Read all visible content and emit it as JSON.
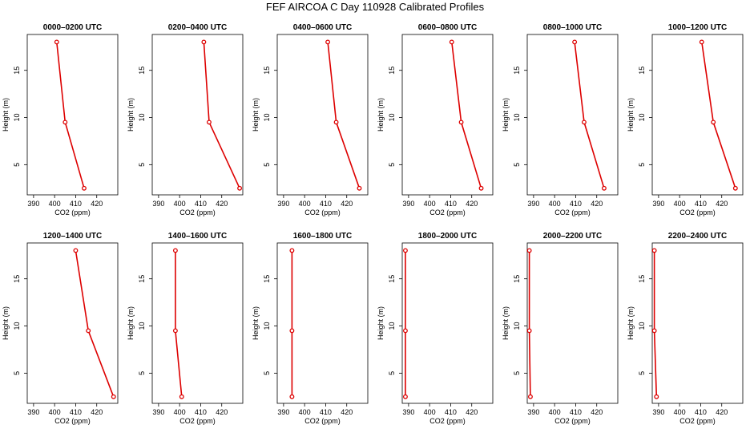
{
  "figure": {
    "title": "FEF AIRCOA C  Day 110928  Calibrated Profiles",
    "series_color": "#dd0000"
  },
  "chart_data": [
    {
      "type": "line",
      "title": "0000–0200 UTC",
      "xlabel": "CO2 (ppm)",
      "ylabel": "Height (m)",
      "xlim": [
        387,
        430
      ],
      "ylim": [
        1.8,
        18.8
      ],
      "xticks": [
        390,
        400,
        410,
        420
      ],
      "yticks": [
        5,
        10,
        15
      ],
      "series": [
        {
          "x": [
            401.0,
            405.0,
            414.0
          ],
          "y": [
            18.0,
            9.5,
            2.5
          ]
        }
      ]
    },
    {
      "type": "line",
      "title": "0200–0400 UTC",
      "xlabel": "CO2 (ppm)",
      "ylabel": "Height (m)",
      "xlim": [
        387,
        430
      ],
      "ylim": [
        1.8,
        18.8
      ],
      "xticks": [
        390,
        400,
        410,
        420
      ],
      "yticks": [
        5,
        10,
        15
      ],
      "series": [
        {
          "x": [
            411.5,
            414.0,
            428.5
          ],
          "y": [
            18.0,
            9.5,
            2.5
          ]
        }
      ]
    },
    {
      "type": "line",
      "title": "0400–0600 UTC",
      "xlabel": "CO2 (ppm)",
      "ylabel": "Height (m)",
      "xlim": [
        387,
        430
      ],
      "ylim": [
        1.8,
        18.8
      ],
      "xticks": [
        390,
        400,
        410,
        420
      ],
      "yticks": [
        5,
        10,
        15
      ],
      "series": [
        {
          "x": [
            411.0,
            415.0,
            426.0
          ],
          "y": [
            18.0,
            9.5,
            2.5
          ]
        }
      ]
    },
    {
      "type": "line",
      "title": "0600–0800 UTC",
      "xlabel": "CO2 (ppm)",
      "ylabel": "Height (m)",
      "xlim": [
        387,
        430
      ],
      "ylim": [
        1.8,
        18.8
      ],
      "xticks": [
        390,
        400,
        410,
        420
      ],
      "yticks": [
        5,
        10,
        15
      ],
      "series": [
        {
          "x": [
            410.5,
            415.0,
            424.5
          ],
          "y": [
            18.0,
            9.5,
            2.5
          ]
        }
      ]
    },
    {
      "type": "line",
      "title": "0800–1000 UTC",
      "xlabel": "CO2 (ppm)",
      "ylabel": "Height (m)",
      "xlim": [
        387,
        430
      ],
      "ylim": [
        1.8,
        18.8
      ],
      "xticks": [
        390,
        400,
        410,
        420
      ],
      "yticks": [
        5,
        10,
        15
      ],
      "series": [
        {
          "x": [
            409.5,
            414.0,
            423.5
          ],
          "y": [
            18.0,
            9.5,
            2.5
          ]
        }
      ]
    },
    {
      "type": "line",
      "title": "1000–1200 UTC",
      "xlabel": "CO2 (ppm)",
      "ylabel": "Height (m)",
      "xlim": [
        387,
        430
      ],
      "ylim": [
        1.8,
        18.8
      ],
      "xticks": [
        390,
        400,
        410,
        420
      ],
      "yticks": [
        5,
        10,
        15
      ],
      "series": [
        {
          "x": [
            410.5,
            416.0,
            426.5
          ],
          "y": [
            18.0,
            9.5,
            2.5
          ]
        }
      ]
    },
    {
      "type": "line",
      "title": "1200–1400 UTC",
      "xlabel": "CO2 (ppm)",
      "ylabel": "Height (m)",
      "xlim": [
        387,
        430
      ],
      "ylim": [
        1.8,
        18.8
      ],
      "xticks": [
        390,
        400,
        410,
        420
      ],
      "yticks": [
        5,
        10,
        15
      ],
      "series": [
        {
          "x": [
            410.0,
            416.0,
            428.0
          ],
          "y": [
            18.0,
            9.5,
            2.5
          ]
        }
      ]
    },
    {
      "type": "line",
      "title": "1400–1600 UTC",
      "xlabel": "CO2 (ppm)",
      "ylabel": "Height (m)",
      "xlim": [
        387,
        430
      ],
      "ylim": [
        1.8,
        18.8
      ],
      "xticks": [
        390,
        400,
        410,
        420
      ],
      "yticks": [
        5,
        10,
        15
      ],
      "series": [
        {
          "x": [
            398.0,
            398.0,
            401.0
          ],
          "y": [
            18.0,
            9.5,
            2.5
          ]
        }
      ]
    },
    {
      "type": "line",
      "title": "1600–1800 UTC",
      "xlabel": "CO2 (ppm)",
      "ylabel": "Height (m)",
      "xlim": [
        387,
        430
      ],
      "ylim": [
        1.8,
        18.8
      ],
      "xticks": [
        390,
        400,
        410,
        420
      ],
      "yticks": [
        5,
        10,
        15
      ],
      "series": [
        {
          "x": [
            394.0,
            394.0,
            394.0
          ],
          "y": [
            18.0,
            9.5,
            2.5
          ]
        }
      ]
    },
    {
      "type": "line",
      "title": "1800–2000 UTC",
      "xlabel": "CO2 (ppm)",
      "ylabel": "Height (m)",
      "xlim": [
        387,
        430
      ],
      "ylim": [
        1.8,
        18.8
      ],
      "xticks": [
        390,
        400,
        410,
        420
      ],
      "yticks": [
        5,
        10,
        15
      ],
      "series": [
        {
          "x": [
            388.5,
            388.5,
            388.5
          ],
          "y": [
            18.0,
            9.5,
            2.5
          ]
        }
      ]
    },
    {
      "type": "line",
      "title": "2000–2200 UTC",
      "xlabel": "CO2 (ppm)",
      "ylabel": "Height (m)",
      "xlim": [
        387,
        430
      ],
      "ylim": [
        1.8,
        18.8
      ],
      "xticks": [
        390,
        400,
        410,
        420
      ],
      "yticks": [
        5,
        10,
        15
      ],
      "series": [
        {
          "x": [
            388.0,
            388.0,
            388.5
          ],
          "y": [
            18.0,
            9.5,
            2.5
          ]
        }
      ]
    },
    {
      "type": "line",
      "title": "2200–2400 UTC",
      "xlabel": "CO2 (ppm)",
      "ylabel": "Height (m)",
      "xlim": [
        387,
        430
      ],
      "ylim": [
        1.8,
        18.8
      ],
      "xticks": [
        390,
        400,
        410,
        420
      ],
      "yticks": [
        5,
        10,
        15
      ],
      "series": [
        {
          "x": [
            388.0,
            388.0,
            389.0
          ],
          "y": [
            18.0,
            9.5,
            2.5
          ]
        }
      ]
    }
  ]
}
